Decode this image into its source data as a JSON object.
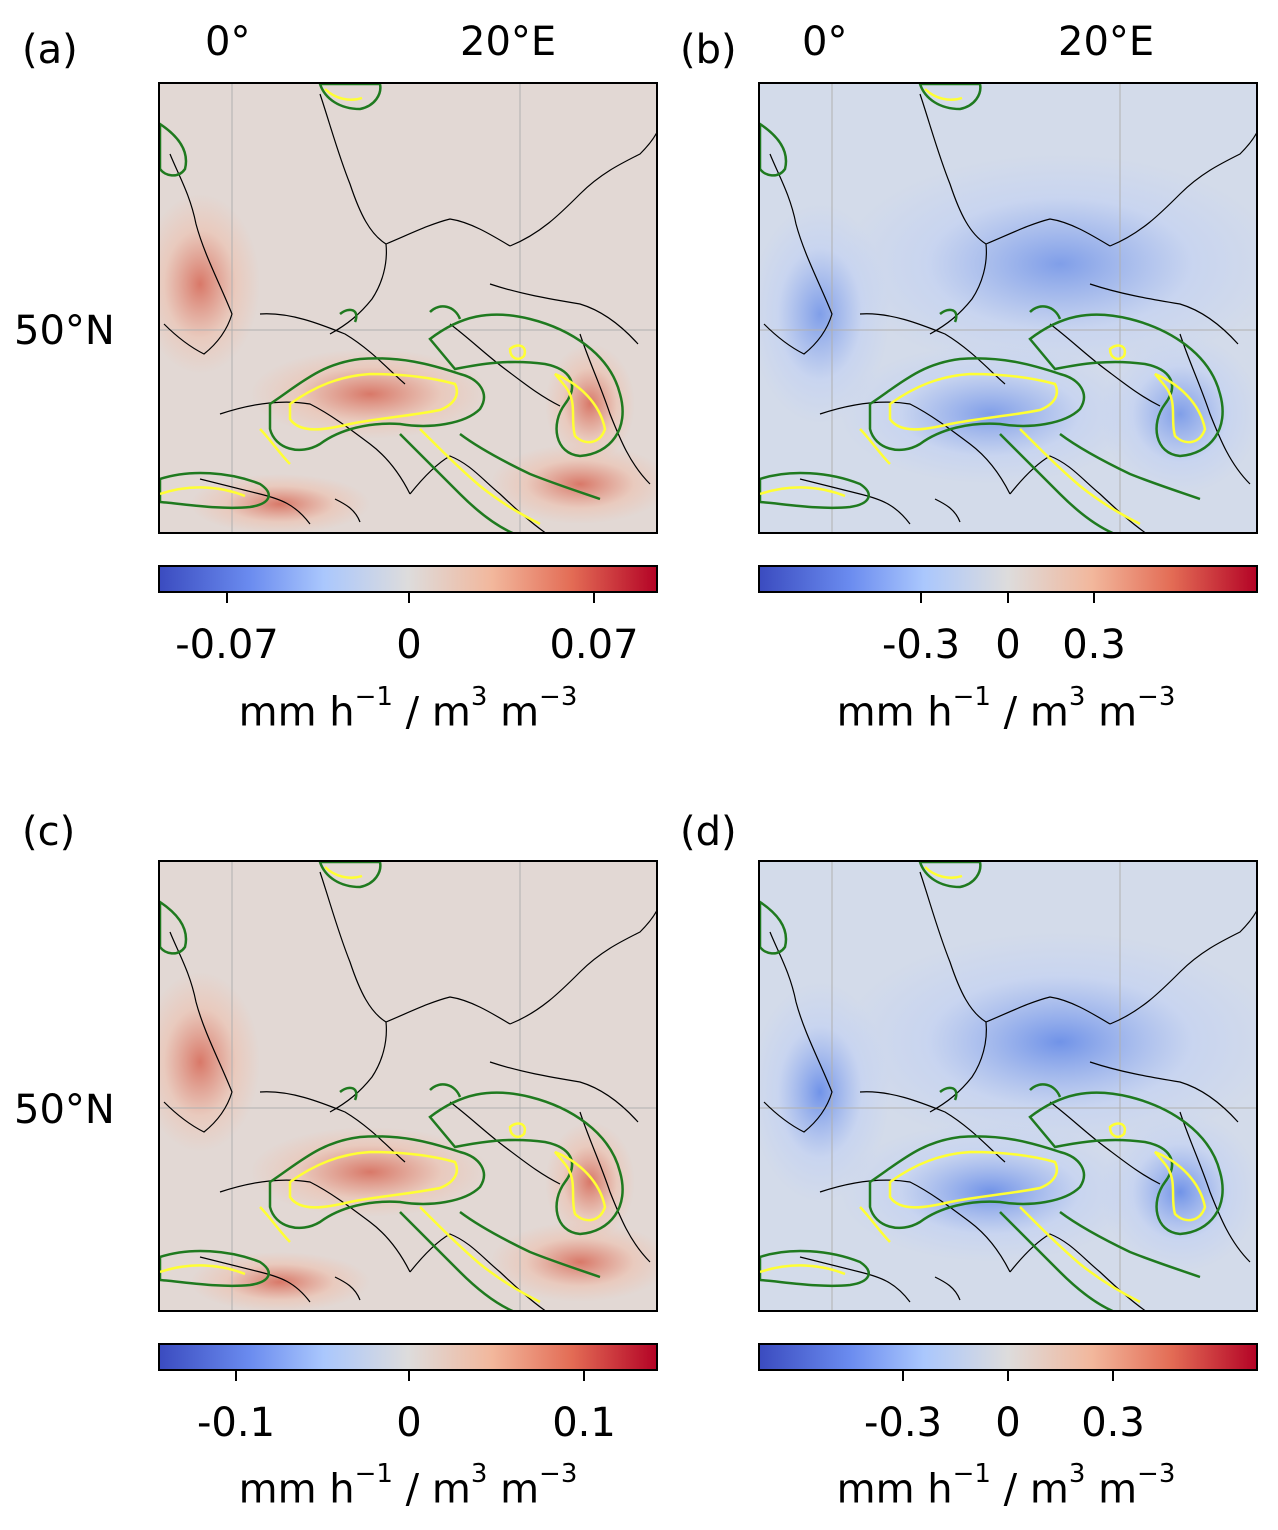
{
  "panels": [
    {
      "letter": "(a)",
      "lon_labels": [
        "0°",
        "20°E"
      ],
      "lat_label": "50°N",
      "cbar_ticks": [
        "-0.07",
        "0",
        "0.07"
      ],
      "tint": "red"
    },
    {
      "letter": "(b)",
      "lon_labels": [
        "0°",
        "20°E"
      ],
      "lat_label": "",
      "cbar_ticks": [
        "-0.3",
        "0",
        "0.3"
      ],
      "tint": "blue"
    },
    {
      "letter": "(c)",
      "lon_labels": [],
      "lat_label": "50°N",
      "cbar_ticks": [
        "-0.1",
        "0",
        "0.1"
      ],
      "tint": "red"
    },
    {
      "letter": "(d)",
      "lon_labels": [],
      "lat_label": "",
      "cbar_ticks": [
        "-0.3",
        "0",
        "0.3"
      ],
      "tint": "blue"
    }
  ],
  "units": {
    "base1": "mm h",
    "exp1": "−1",
    "mid": " / m",
    "exp2": "3",
    "base2": " m",
    "exp3": "−3"
  },
  "colors": {
    "contour_green": "#1f7a1f",
    "contour_yellow": "#ffff33",
    "coast": "#000000",
    "grid": "#b0b0b0",
    "neutral": "#dddcdc"
  },
  "colormap": "coolwarm"
}
